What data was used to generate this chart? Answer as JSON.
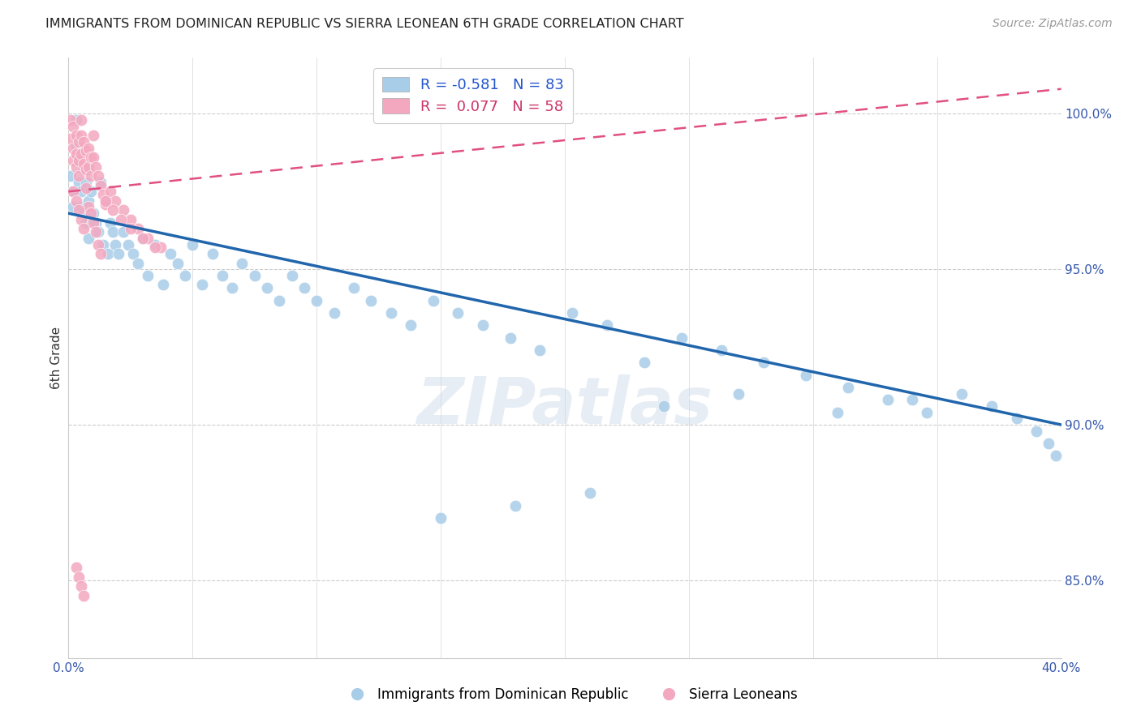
{
  "title": "IMMIGRANTS FROM DOMINICAN REPUBLIC VS SIERRA LEONEAN 6TH GRADE CORRELATION CHART",
  "source": "Source: ZipAtlas.com",
  "ylabel": "6th Grade",
  "y_ticks": [
    0.85,
    0.9,
    0.95,
    1.0
  ],
  "y_tick_labels": [
    "85.0%",
    "90.0%",
    "95.0%",
    "100.0%"
  ],
  "x_lim": [
    0.0,
    0.4
  ],
  "y_lim": [
    0.825,
    1.018
  ],
  "legend_r1": "R = -0.581",
  "legend_n1": "N = 83",
  "legend_r2": "R =  0.077",
  "legend_n2": "N = 58",
  "blue_color": "#a8cde8",
  "pink_color": "#f4a8c0",
  "blue_line_color": "#2166ac",
  "pink_line_color": "#e05080",
  "watermark": "ZIPatlas",
  "blue_line_x0": 0.0,
  "blue_line_y0": 0.968,
  "blue_line_x1": 0.4,
  "blue_line_y1": 0.9,
  "pink_line_x0": 0.0,
  "pink_line_y0": 0.975,
  "pink_line_x1": 0.4,
  "pink_line_y1": 1.008,
  "blue_x": [
    0.001,
    0.002,
    0.002,
    0.003,
    0.003,
    0.004,
    0.004,
    0.005,
    0.005,
    0.006,
    0.006,
    0.007,
    0.007,
    0.008,
    0.008,
    0.009,
    0.01,
    0.011,
    0.012,
    0.013,
    0.014,
    0.015,
    0.016,
    0.017,
    0.018,
    0.019,
    0.02,
    0.022,
    0.024,
    0.026,
    0.028,
    0.03,
    0.032,
    0.035,
    0.038,
    0.041,
    0.044,
    0.047,
    0.05,
    0.054,
    0.058,
    0.062,
    0.066,
    0.07,
    0.075,
    0.08,
    0.085,
    0.09,
    0.095,
    0.1,
    0.107,
    0.115,
    0.122,
    0.13,
    0.138,
    0.147,
    0.157,
    0.167,
    0.178,
    0.19,
    0.203,
    0.217,
    0.232,
    0.247,
    0.263,
    0.28,
    0.297,
    0.314,
    0.33,
    0.346,
    0.36,
    0.372,
    0.382,
    0.39,
    0.395,
    0.398,
    0.34,
    0.31,
    0.27,
    0.24,
    0.21,
    0.18,
    0.15
  ],
  "blue_y": [
    0.98,
    0.975,
    0.97,
    0.998,
    0.99,
    0.985,
    0.978,
    0.975,
    0.97,
    0.982,
    0.968,
    0.978,
    0.965,
    0.972,
    0.96,
    0.975,
    0.968,
    0.965,
    0.962,
    0.978,
    0.958,
    0.972,
    0.955,
    0.965,
    0.962,
    0.958,
    0.955,
    0.962,
    0.958,
    0.955,
    0.952,
    0.96,
    0.948,
    0.958,
    0.945,
    0.955,
    0.952,
    0.948,
    0.958,
    0.945,
    0.955,
    0.948,
    0.944,
    0.952,
    0.948,
    0.944,
    0.94,
    0.948,
    0.944,
    0.94,
    0.936,
    0.944,
    0.94,
    0.936,
    0.932,
    0.94,
    0.936,
    0.932,
    0.928,
    0.924,
    0.936,
    0.932,
    0.92,
    0.928,
    0.924,
    0.92,
    0.916,
    0.912,
    0.908,
    0.904,
    0.91,
    0.906,
    0.902,
    0.898,
    0.894,
    0.89,
    0.908,
    0.904,
    0.91,
    0.906,
    0.878,
    0.874,
    0.87
  ],
  "pink_x": [
    0.001,
    0.001,
    0.002,
    0.002,
    0.002,
    0.003,
    0.003,
    0.003,
    0.004,
    0.004,
    0.004,
    0.005,
    0.005,
    0.005,
    0.006,
    0.006,
    0.007,
    0.007,
    0.008,
    0.008,
    0.009,
    0.009,
    0.01,
    0.01,
    0.011,
    0.012,
    0.013,
    0.014,
    0.015,
    0.017,
    0.019,
    0.022,
    0.025,
    0.028,
    0.032,
    0.037,
    0.007,
    0.008,
    0.009,
    0.01,
    0.011,
    0.012,
    0.013,
    0.015,
    0.018,
    0.021,
    0.025,
    0.03,
    0.035,
    0.003,
    0.004,
    0.005,
    0.006,
    0.002,
    0.003,
    0.004,
    0.005,
    0.006
  ],
  "pink_y": [
    0.998,
    0.992,
    0.996,
    0.989,
    0.985,
    0.993,
    0.987,
    0.983,
    0.991,
    0.985,
    0.98,
    0.998,
    0.993,
    0.987,
    0.991,
    0.984,
    0.988,
    0.982,
    0.989,
    0.983,
    0.986,
    0.98,
    0.993,
    0.986,
    0.983,
    0.98,
    0.977,
    0.974,
    0.971,
    0.975,
    0.972,
    0.969,
    0.966,
    0.963,
    0.96,
    0.957,
    0.976,
    0.97,
    0.968,
    0.965,
    0.962,
    0.958,
    0.955,
    0.972,
    0.969,
    0.966,
    0.963,
    0.96,
    0.957,
    0.854,
    0.851,
    0.848,
    0.845,
    0.975,
    0.972,
    0.969,
    0.966,
    0.963
  ]
}
